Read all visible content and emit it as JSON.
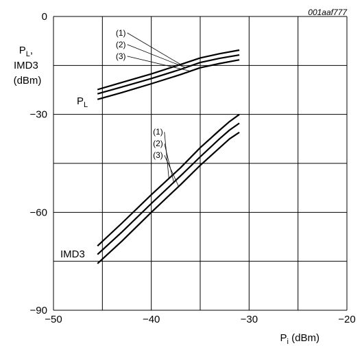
{
  "figure_id": "001aaf777",
  "chart_data": {
    "type": "line",
    "xlabel_main": "P",
    "xlabel_sub": "i",
    "xlabel_unit": " (dBm)",
    "ylabel_line1_main": "P",
    "ylabel_line1_sub": "L",
    "ylabel_line1_suffix": ",",
    "ylabel_line2": "IMD3",
    "ylabel_line3": "(dBm)",
    "xlim": [
      -50,
      -20
    ],
    "ylim": [
      -90,
      0
    ],
    "x_ticks": [
      -50,
      -40,
      -30,
      -20
    ],
    "y_ticks": [
      -90,
      -60,
      -30,
      0
    ],
    "x_tick_labels": [
      "−50",
      "−40",
      "−30",
      "−20"
    ],
    "y_tick_labels": [
      "−90",
      "−60",
      "−30",
      "0"
    ],
    "x_grid_step": 5,
    "y_grid_step": 15,
    "grid": true,
    "groups": [
      {
        "label_main": "P",
        "label_sub": "L",
        "series": [
          {
            "name": "(1)",
            "x": [
              -45.5,
              -43,
              -40,
              -37,
              -35,
              -33,
              -31
            ],
            "y": [
              -22.4,
              -20.2,
              -17.6,
              -14.7,
              -12.7,
              -11.4,
              -10.3
            ]
          },
          {
            "name": "(2)",
            "x": [
              -45.5,
              -43,
              -40,
              -37,
              -35,
              -33,
              -31
            ],
            "y": [
              -23.7,
              -21.6,
              -19.0,
              -16.2,
              -14.1,
              -12.8,
              -11.8
            ]
          },
          {
            "name": "(3)",
            "x": [
              -45.5,
              -43,
              -40,
              -37,
              -35,
              -33,
              -31
            ],
            "y": [
              -25.4,
              -23.3,
              -20.6,
              -17.8,
              -15.7,
              -14.4,
              -13.3
            ]
          }
        ]
      },
      {
        "label_main": "IMD3",
        "label_sub": "",
        "series": [
          {
            "name": "(1)",
            "x": [
              -45.5,
              -43,
              -40,
              -37,
              -35,
              -33,
              -32,
              -31
            ],
            "y": [
              -70.3,
              -63.3,
              -54.6,
              -46.3,
              -40.2,
              -34.8,
              -32.2,
              -30.0
            ]
          },
          {
            "name": "(2)",
            "x": [
              -45.5,
              -43,
              -40,
              -37,
              -35,
              -33,
              -32,
              -31
            ],
            "y": [
              -72.9,
              -66.0,
              -57.3,
              -48.8,
              -43.0,
              -37.4,
              -34.8,
              -32.7
            ]
          },
          {
            "name": "(3)",
            "x": [
              -45.5,
              -43,
              -40,
              -37,
              -35,
              -33,
              -32,
              -31
            ],
            "y": [
              -75.7,
              -68.8,
              -60.0,
              -51.5,
              -45.6,
              -40.2,
              -37.5,
              -35.5
            ]
          }
        ]
      }
    ]
  }
}
